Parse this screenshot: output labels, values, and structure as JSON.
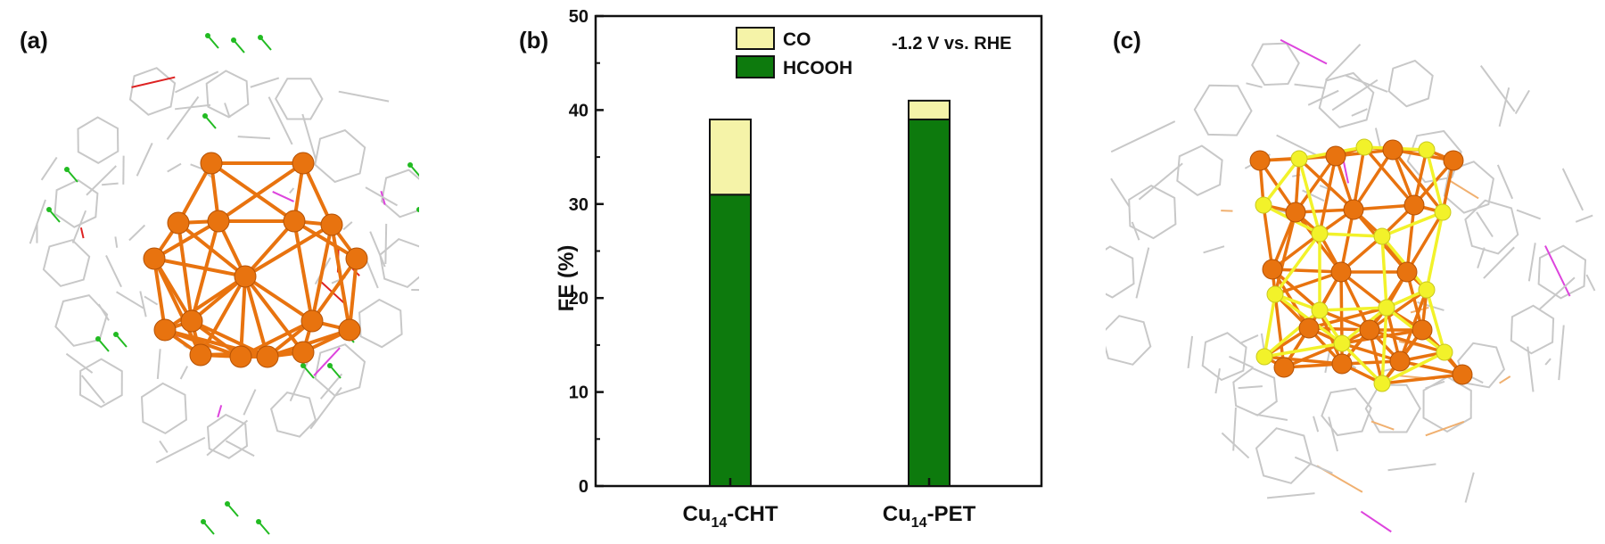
{
  "panels": {
    "a": "(a)",
    "b": "(b)",
    "c": "(c)"
  },
  "chart_data": {
    "type": "bar",
    "stacked": true,
    "categories": [
      {
        "base": "Cu",
        "sub": "14",
        "suffix": "-CHT"
      },
      {
        "base": "Cu",
        "sub": "14",
        "suffix": "-PET"
      }
    ],
    "series": [
      {
        "name": "HCOOH",
        "color": "#0d7a0d",
        "values": [
          31,
          39
        ]
      },
      {
        "name": "CO",
        "color": "#f5f3a8",
        "values": [
          8,
          2
        ]
      }
    ],
    "ylabel": "FE (%)",
    "ylim": [
      0,
      50
    ],
    "yticks": [
      0,
      10,
      20,
      30,
      40,
      50
    ],
    "annotation": "-1.2 V vs. RHE",
    "legend_order": [
      "CO",
      "HCOOH"
    ],
    "legend_position": "top-left inside",
    "grid": false
  },
  "structures": {
    "a": {
      "core_color": "#e8730f",
      "ligand_colors": [
        "#c8c8c8",
        "#22bb22",
        "#dd2222",
        "#dd44dd"
      ]
    },
    "c": {
      "core_color": "#e8730f",
      "sulfur_color": "#f2f22a",
      "ligand_colors": [
        "#c8c8c8",
        "#dd44dd",
        "#f0b070"
      ]
    }
  }
}
